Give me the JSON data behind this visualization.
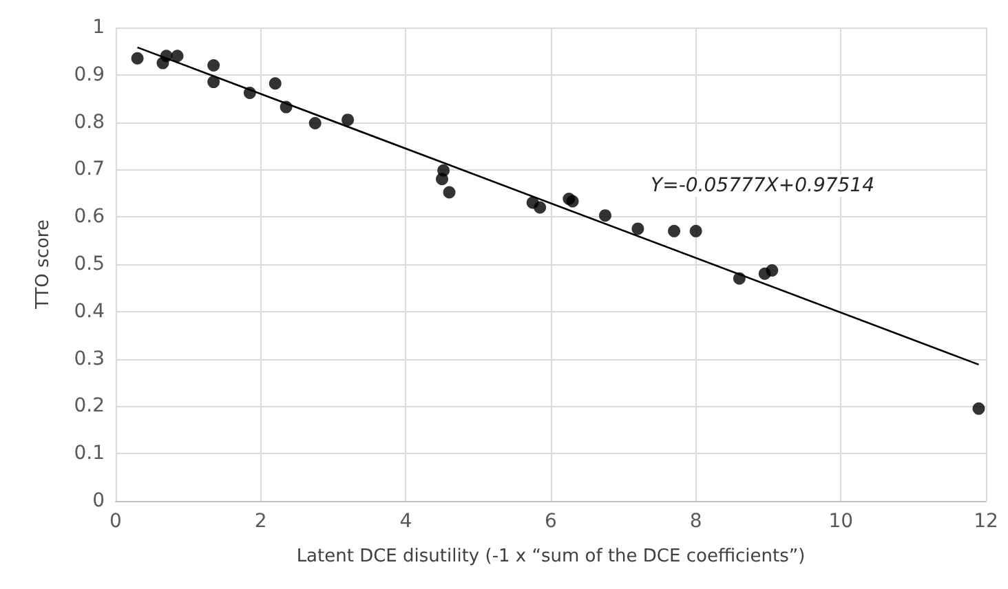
{
  "chart_data": {
    "type": "scatter",
    "xlabel": "Latent DCE disutility (-1 x “sum of the DCE coefficients”)",
    "ylabel": "TTO score",
    "xlim": [
      0,
      12
    ],
    "xticks": [
      0,
      2,
      4,
      6,
      8,
      10,
      12
    ],
    "ylim": [
      0,
      1
    ],
    "yticks": [
      0,
      0.1,
      0.2,
      0.3,
      0.4,
      0.5,
      0.6,
      0.7,
      0.8,
      0.9,
      1
    ],
    "grid": true,
    "marker": "circle",
    "annotations": [
      "Y=-0.05777X+0.97514"
    ],
    "series": [
      {
        "color": "#000000",
        "x": [
          0.3,
          0.65,
          0.7,
          0.85,
          1.35,
          1.35,
          1.85,
          2.2,
          2.35,
          2.75,
          3.2,
          4.5,
          4.52,
          4.6,
          5.75,
          5.85,
          6.25,
          6.3,
          6.75,
          7.2,
          7.7,
          8.0,
          8.6,
          8.95,
          9.05,
          11.9
        ],
        "values": [
          0.935,
          0.925,
          0.94,
          0.94,
          0.92,
          0.885,
          0.862,
          0.882,
          0.832,
          0.798,
          0.805,
          0.68,
          0.698,
          0.652,
          0.63,
          0.62,
          0.638,
          0.633,
          0.603,
          0.575,
          0.57,
          0.57,
          0.47,
          0.48,
          0.487,
          0.195
        ]
      },
      {
        "type": "line",
        "color": "#000000",
        "marker": "none",
        "x": [
          0.3,
          11.9
        ],
        "values": [
          0.958,
          0.288
        ]
      }
    ]
  }
}
